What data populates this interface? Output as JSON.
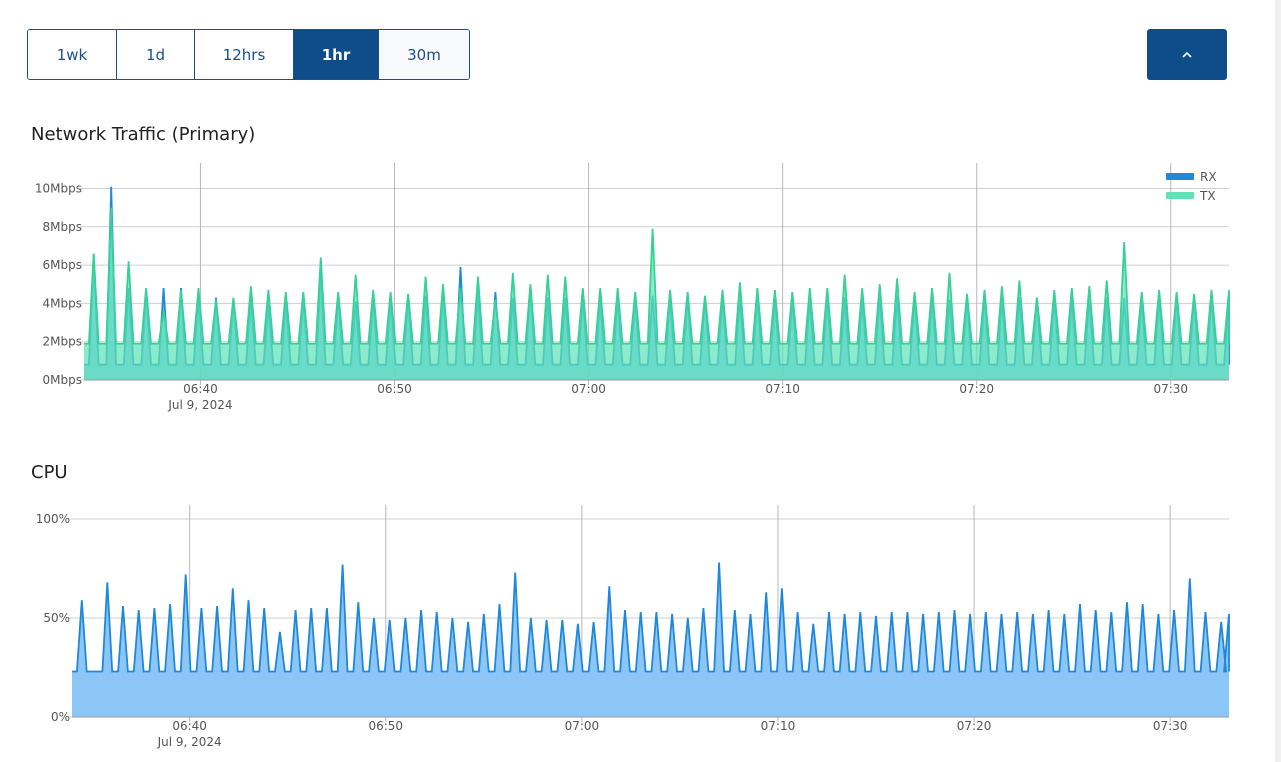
{
  "range_selector": {
    "options": [
      "1wk",
      "1d",
      "12hrs",
      "1hr",
      "30m"
    ],
    "active": "1hr"
  },
  "colors": {
    "accent": "#0e4c8a",
    "rx_line": "#1f8ad8",
    "rx_fill": "#5ab0ea",
    "tx_line": "#35d196",
    "tx_fill": "#5fe3b6",
    "cpu_line": "#1f88db",
    "cpu_fill": "#8cc6f7"
  },
  "icons": {
    "collapse": "chevron-up-icon"
  },
  "network": {
    "title": "Network Traffic (Primary)"
  },
  "cpu": {
    "title": "CPU"
  },
  "chart_data": [
    {
      "type": "area",
      "title": "Network Traffic (Primary)",
      "xlabel": "",
      "ylabel": "",
      "x_range": [
        "06:34",
        "07:33"
      ],
      "ylim": [
        0,
        10.6
      ],
      "unit": "Mbps",
      "y_ticks": [
        "0Mbps",
        "2Mbps",
        "4Mbps",
        "6Mbps",
        "8Mbps",
        "10Mbps"
      ],
      "x_ticks": [
        "06:40",
        "06:50",
        "07:00",
        "07:10",
        "07:20",
        "07:30"
      ],
      "x_subtick": "Jul 9, 2024",
      "grid": true,
      "legend_position": "top-right",
      "series": [
        {
          "name": "RX",
          "peaks": [
            [
              0.5,
              6.5
            ],
            [
              1.4,
              10.1
            ],
            [
              2.3,
              4.8
            ],
            [
              3.2,
              4.7
            ],
            [
              4.1,
              4.8
            ],
            [
              5.0,
              4.8
            ],
            [
              5.9,
              4.3
            ],
            [
              6.8,
              4.3
            ],
            [
              7.7,
              4.2
            ],
            [
              8.6,
              4.3
            ],
            [
              9.5,
              4.0
            ],
            [
              10.4,
              4.2
            ],
            [
              11.3,
              4.3
            ],
            [
              12.2,
              5.6
            ],
            [
              13.1,
              4.4
            ],
            [
              14.0,
              4.1
            ],
            [
              14.9,
              4.2
            ],
            [
              15.8,
              4.2
            ],
            [
              16.7,
              4.3
            ],
            [
              17.6,
              4.4
            ],
            [
              18.5,
              4.6
            ],
            [
              19.4,
              5.9
            ],
            [
              20.3,
              4.6
            ],
            [
              21.2,
              4.6
            ],
            [
              22.1,
              4.3
            ],
            [
              23.0,
              4.8
            ],
            [
              23.9,
              4.3
            ],
            [
              24.8,
              4.3
            ],
            [
              25.7,
              4.3
            ],
            [
              26.6,
              4.2
            ],
            [
              27.5,
              4.3
            ],
            [
              28.4,
              4.3
            ],
            [
              29.3,
              4.4
            ],
            [
              30.2,
              4.4
            ],
            [
              31.1,
              4.4
            ],
            [
              32.0,
              4.3
            ],
            [
              32.9,
              4.3
            ],
            [
              33.8,
              4.3
            ],
            [
              34.7,
              4.4
            ],
            [
              35.6,
              4.3
            ],
            [
              36.5,
              4.3
            ],
            [
              37.4,
              4.2
            ],
            [
              38.3,
              4.3
            ],
            [
              39.2,
              4.3
            ],
            [
              40.1,
              4.3
            ],
            [
              41.0,
              4.3
            ],
            [
              41.9,
              4.4
            ],
            [
              42.8,
              4.3
            ],
            [
              43.7,
              4.3
            ],
            [
              44.6,
              4.2
            ],
            [
              45.5,
              4.3
            ],
            [
              46.4,
              4.3
            ],
            [
              47.3,
              4.3
            ],
            [
              48.2,
              4.3
            ],
            [
              49.1,
              4.3
            ],
            [
              50.0,
              4.3
            ],
            [
              50.9,
              4.3
            ],
            [
              51.8,
              4.2
            ],
            [
              52.7,
              4.3
            ],
            [
              53.6,
              4.3
            ],
            [
              54.5,
              4.3
            ],
            [
              55.4,
              4.3
            ],
            [
              56.3,
              4.3
            ],
            [
              57.2,
              4.3
            ],
            [
              58.1,
              4.3
            ],
            [
              59.0,
              4.4
            ]
          ],
          "baseline": 0.8
        },
        {
          "name": "TX",
          "peaks": [
            [
              0.5,
              6.6
            ],
            [
              1.4,
              9.0
            ],
            [
              2.3,
              6.2
            ],
            [
              3.2,
              4.8
            ],
            [
              4.1,
              3.6
            ],
            [
              5.0,
              4.7
            ],
            [
              5.9,
              4.8
            ],
            [
              6.8,
              4.2
            ],
            [
              7.7,
              4.3
            ],
            [
              8.6,
              4.9
            ],
            [
              9.5,
              4.7
            ],
            [
              10.4,
              4.6
            ],
            [
              11.3,
              4.6
            ],
            [
              12.2,
              6.4
            ],
            [
              13.1,
              4.6
            ],
            [
              14.0,
              5.5
            ],
            [
              14.9,
              4.7
            ],
            [
              15.8,
              4.6
            ],
            [
              16.7,
              4.5
            ],
            [
              17.6,
              5.4
            ],
            [
              18.5,
              5.0
            ],
            [
              19.4,
              4.8
            ],
            [
              20.3,
              5.4
            ],
            [
              21.2,
              4.2
            ],
            [
              22.1,
              5.6
            ],
            [
              23.0,
              5.0
            ],
            [
              23.9,
              5.5
            ],
            [
              24.8,
              5.4
            ],
            [
              25.7,
              4.8
            ],
            [
              26.6,
              4.8
            ],
            [
              27.5,
              4.8
            ],
            [
              28.4,
              4.6
            ],
            [
              29.3,
              7.9
            ],
            [
              30.2,
              4.7
            ],
            [
              31.1,
              4.6
            ],
            [
              32.0,
              4.4
            ],
            [
              32.9,
              4.7
            ],
            [
              33.8,
              5.1
            ],
            [
              34.7,
              4.8
            ],
            [
              35.6,
              4.7
            ],
            [
              36.5,
              4.6
            ],
            [
              37.4,
              4.8
            ],
            [
              38.3,
              4.8
            ],
            [
              39.2,
              5.5
            ],
            [
              40.1,
              4.8
            ],
            [
              41.0,
              5.0
            ],
            [
              41.9,
              5.3
            ],
            [
              42.8,
              4.6
            ],
            [
              43.7,
              4.8
            ],
            [
              44.6,
              5.6
            ],
            [
              45.5,
              4.5
            ],
            [
              46.4,
              4.7
            ],
            [
              47.3,
              4.9
            ],
            [
              48.2,
              5.2
            ],
            [
              49.1,
              4.3
            ],
            [
              50.0,
              4.7
            ],
            [
              50.9,
              4.8
            ],
            [
              51.8,
              4.9
            ],
            [
              52.7,
              5.2
            ],
            [
              53.6,
              7.2
            ],
            [
              54.5,
              4.6
            ],
            [
              55.4,
              4.7
            ],
            [
              56.3,
              4.6
            ],
            [
              57.2,
              4.5
            ],
            [
              58.1,
              4.7
            ],
            [
              59.0,
              4.7
            ]
          ],
          "baseline": 1.9
        }
      ]
    },
    {
      "type": "area",
      "title": "CPU",
      "xlabel": "",
      "ylabel": "",
      "x_range": [
        "06:34",
        "07:33"
      ],
      "ylim": [
        0,
        100
      ],
      "y_ticks": [
        "0%",
        "50%",
        "100%"
      ],
      "x_ticks": [
        "06:40",
        "06:50",
        "07:00",
        "07:10",
        "07:20",
        "07:30"
      ],
      "x_subtick": "Jul 9, 2024",
      "grid": true,
      "series": [
        {
          "name": "",
          "peaks": [
            [
              0.5,
              59
            ],
            [
              1.8,
              68
            ],
            [
              2.6,
              56
            ],
            [
              3.4,
              54
            ],
            [
              4.2,
              55
            ],
            [
              5.0,
              57
            ],
            [
              5.8,
              72
            ],
            [
              6.6,
              55
            ],
            [
              7.4,
              56
            ],
            [
              8.2,
              65
            ],
            [
              9.0,
              59
            ],
            [
              9.8,
              55
            ],
            [
              10.6,
              43
            ],
            [
              11.4,
              54
            ],
            [
              12.2,
              55
            ],
            [
              13.0,
              55
            ],
            [
              13.8,
              77
            ],
            [
              14.6,
              58
            ],
            [
              15.4,
              50
            ],
            [
              16.2,
              49
            ],
            [
              17.0,
              50
            ],
            [
              17.8,
              54
            ],
            [
              18.6,
              53
            ],
            [
              19.4,
              50
            ],
            [
              20.2,
              48
            ],
            [
              21.0,
              52
            ],
            [
              21.8,
              57
            ],
            [
              22.6,
              73
            ],
            [
              23.4,
              50
            ],
            [
              24.2,
              49
            ],
            [
              25.0,
              49
            ],
            [
              25.8,
              47
            ],
            [
              26.6,
              48
            ],
            [
              27.4,
              66
            ],
            [
              28.2,
              54
            ],
            [
              29.0,
              53
            ],
            [
              29.8,
              53
            ],
            [
              30.6,
              52
            ],
            [
              31.4,
              50
            ],
            [
              32.2,
              55
            ],
            [
              33.0,
              78
            ],
            [
              33.8,
              54
            ],
            [
              34.6,
              52
            ],
            [
              35.4,
              63
            ],
            [
              36.2,
              65
            ],
            [
              37.0,
              53
            ],
            [
              37.8,
              47
            ],
            [
              38.6,
              53
            ],
            [
              39.4,
              52
            ],
            [
              40.2,
              53
            ],
            [
              41.0,
              51
            ],
            [
              41.8,
              53
            ],
            [
              42.6,
              53
            ],
            [
              43.4,
              52
            ],
            [
              44.2,
              53
            ],
            [
              45.0,
              54
            ],
            [
              45.8,
              52
            ],
            [
              46.6,
              53
            ],
            [
              47.4,
              52
            ],
            [
              48.2,
              53
            ],
            [
              49.0,
              52
            ],
            [
              49.8,
              54
            ],
            [
              50.6,
              52
            ],
            [
              51.4,
              57
            ],
            [
              52.2,
              54
            ],
            [
              53.0,
              53
            ],
            [
              53.8,
              58
            ],
            [
              54.6,
              57
            ],
            [
              55.4,
              52
            ],
            [
              56.2,
              54
            ],
            [
              57.0,
              70
            ],
            [
              57.8,
              53
            ],
            [
              58.6,
              48
            ],
            [
              59.0,
              52
            ]
          ],
          "baseline": 23
        }
      ]
    }
  ]
}
